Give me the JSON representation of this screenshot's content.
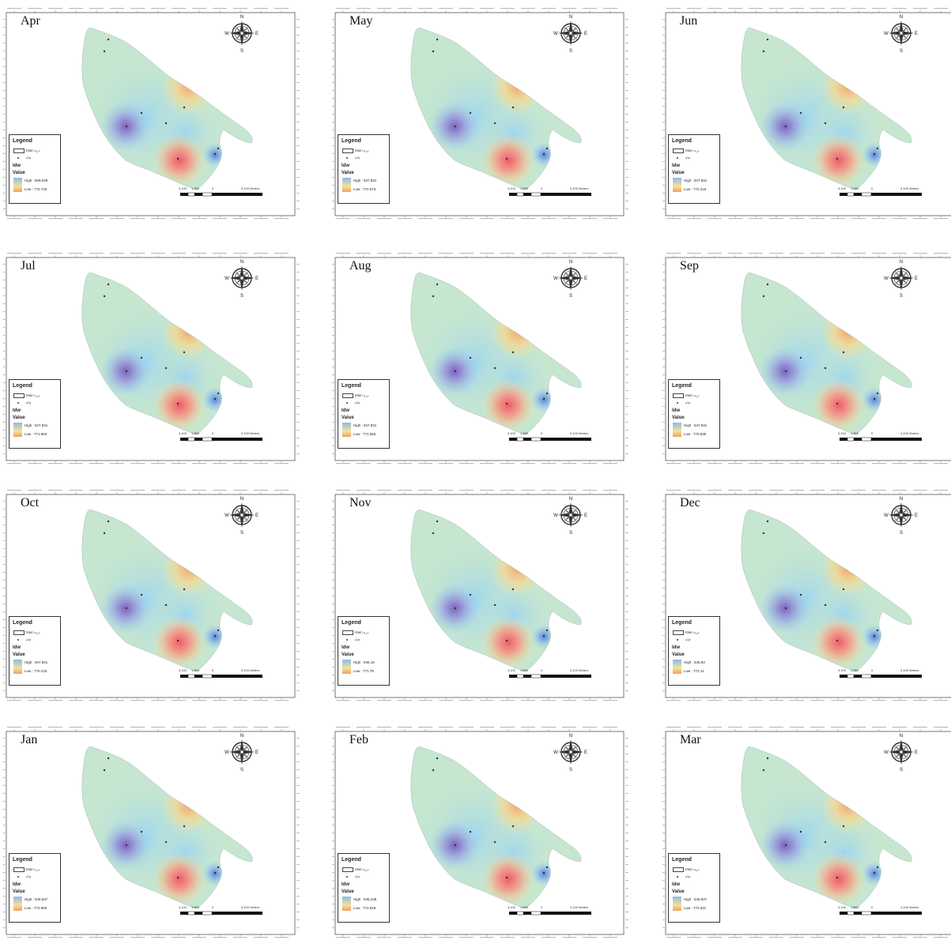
{
  "legend": {
    "title": "Legend",
    "line1": "Main دره",
    "line2": "چاه",
    "idw": "Idw",
    "value": "Value",
    "high_prefix": "High :",
    "low_prefix": "Low :"
  },
  "compass": {
    "n": "N",
    "s": "S",
    "e": "E",
    "w": "W"
  },
  "scale": {
    "a": "3,100",
    "b": "1,550",
    "c": "0",
    "d": "3,100 Meters"
  },
  "colors": {
    "background": "#c6e6cf",
    "low": "#8fb8e6",
    "mid": "#f3e39a",
    "high": "#ef6b6b",
    "deep": "#8a73c6"
  },
  "maps": [
    {
      "month": "Apr",
      "high": "809.939",
      "low": "772.733"
    },
    {
      "month": "May",
      "high": "947.831",
      "low": "772.573"
    },
    {
      "month": "Jun",
      "high": "947.831",
      "low": "772.215"
    },
    {
      "month": "Jul",
      "high": "947.831",
      "low": "771.953"
    },
    {
      "month": "Aug",
      "high": "947.831",
      "low": "771.553"
    },
    {
      "month": "Sep",
      "high": "947.831",
      "low": "770.535"
    },
    {
      "month": "Oct",
      "high": "947.831",
      "low": "770.215"
    },
    {
      "month": "Nov",
      "high": "946.15",
      "low": "771.78"
    },
    {
      "month": "Dec",
      "high": "945.83",
      "low": "772.12"
    },
    {
      "month": "Jan",
      "high": "945.537",
      "low": "772.983"
    },
    {
      "month": "Feb",
      "high": "945.238",
      "low": "772.818"
    },
    {
      "month": "Mar",
      "high": "945.837",
      "low": "772.021"
    }
  ]
}
